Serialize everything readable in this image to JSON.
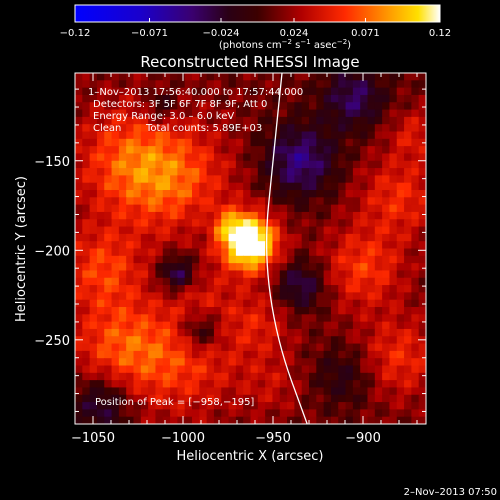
{
  "chart_data": {
    "type": "heatmap",
    "title": "Reconstructed RHESSI Image",
    "xlabel": "Heliocentric X (arcsec)",
    "ylabel": "Heliocentric Y (arcsec)",
    "xlim": [
      -1060,
      -865
    ],
    "ylim": [
      -297,
      -101
    ],
    "x_ticks": [
      -1050,
      -1000,
      -950,
      -900
    ],
    "x_tick_labels": [
      "−1050",
      "−1000",
      "−950",
      "−900"
    ],
    "y_ticks": [
      -250,
      -200,
      -150
    ],
    "y_tick_labels": [
      "−250",
      "−200",
      "−150"
    ],
    "colorbar": {
      "range": [
        -0.12,
        0.12
      ],
      "ticks": [
        -0.12,
        -0.071,
        -0.024,
        0.024,
        0.071,
        0.12
      ],
      "tick_labels": [
        "−0.12",
        "−0.071",
        "−0.024",
        "0.024",
        "0.071",
        "0.12"
      ],
      "unit_base": "(photons cm",
      "unit_exp1": "−2",
      "unit_mid": " s",
      "unit_exp2": "−1",
      "unit_end": " asec",
      "unit_exp3": "−2",
      "unit_close": ")"
    },
    "annotations": {
      "time_range": "1–Nov–2013 17:56:40.000 to 17:57:44.000",
      "detectors": "Detectors: 3F 5F 6F 7F 8F 9F, Att 0",
      "energy_range": "Energy Range: 3.0 – 6.0 keV",
      "algorithm": "Clean",
      "total_counts": "Total counts: 5.89E+03",
      "peak": "Position of Peak = [−958,−195]"
    },
    "peak_position": [
      -958,
      -195
    ],
    "limb_curve": [
      [
        -945,
        -101
      ],
      [
        -950,
        -150
      ],
      [
        -955,
        -200
      ],
      [
        -948,
        -250
      ],
      [
        -931,
        -297
      ]
    ],
    "blobs": [
      {
        "x": -963,
        "y": -196,
        "sigma": 11,
        "amp": 0.13
      },
      {
        "x": -975,
        "y": -186,
        "sigma": 7,
        "amp": 0.04
      },
      {
        "x": -1002,
        "y": -162,
        "sigma": 22,
        "amp": 0.045
      },
      {
        "x": -1030,
        "y": -150,
        "sigma": 22,
        "amp": 0.05
      },
      {
        "x": -1045,
        "y": -210,
        "sigma": 16,
        "amp": 0.045
      },
      {
        "x": -1035,
        "y": -255,
        "sigma": 20,
        "amp": 0.05
      },
      {
        "x": -998,
        "y": -262,
        "sigma": 22,
        "amp": 0.04
      },
      {
        "x": -990,
        "y": -225,
        "sigma": 12,
        "amp": 0.02
      },
      {
        "x": -958,
        "y": -240,
        "sigma": 14,
        "amp": 0.03
      },
      {
        "x": -985,
        "y": -185,
        "sigma": 10,
        "amp": -0.012
      },
      {
        "x": -1003,
        "y": -213,
        "sigma": 7,
        "amp": -0.06
      },
      {
        "x": -990,
        "y": -245,
        "sigma": 8,
        "amp": -0.05
      },
      {
        "x": -1012,
        "y": -120,
        "sigma": 7,
        "amp": -0.035
      },
      {
        "x": -935,
        "y": -150,
        "sigma": 14,
        "amp": -0.06
      },
      {
        "x": -905,
        "y": -115,
        "sigma": 12,
        "amp": -0.05
      },
      {
        "x": -935,
        "y": -220,
        "sigma": 10,
        "amp": -0.05
      },
      {
        "x": -880,
        "y": -170,
        "sigma": 16,
        "amp": 0.04
      },
      {
        "x": -872,
        "y": -135,
        "sigma": 10,
        "amp": 0.03
      },
      {
        "x": -900,
        "y": -210,
        "sigma": 16,
        "amp": 0.045
      },
      {
        "x": -880,
        "y": -260,
        "sigma": 16,
        "amp": 0.04
      },
      {
        "x": -910,
        "y": -270,
        "sigma": 12,
        "amp": -0.03
      },
      {
        "x": -1045,
        "y": -285,
        "sigma": 12,
        "amp": -0.05
      },
      {
        "x": -950,
        "y": -275,
        "sigma": 12,
        "amp": 0.02
      }
    ]
  },
  "footer": {
    "timestamp": "2–Nov–2013 07:50"
  }
}
